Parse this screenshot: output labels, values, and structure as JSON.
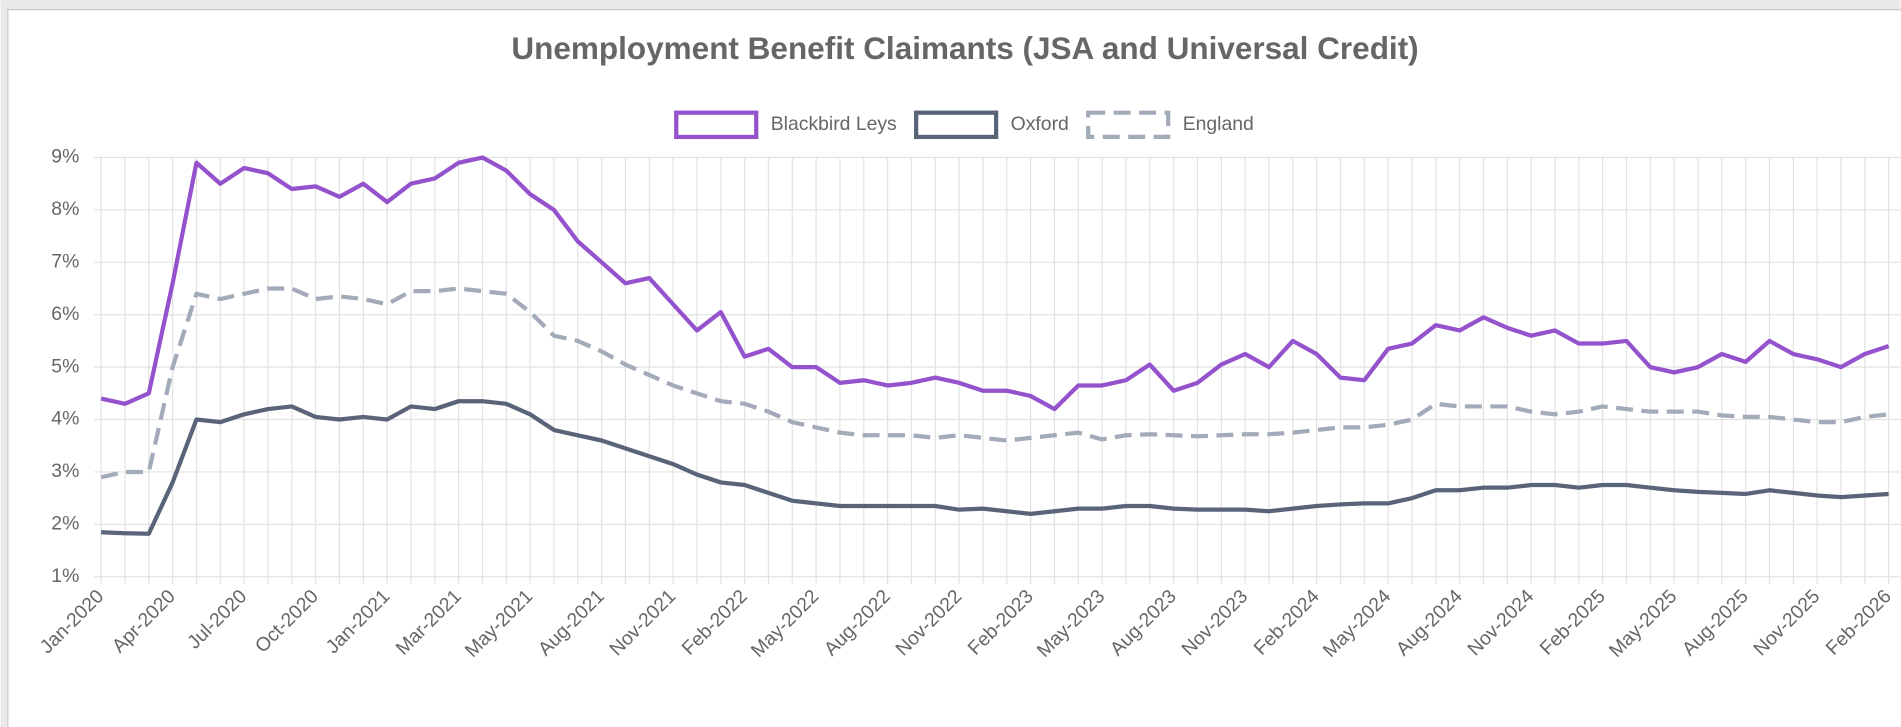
{
  "chart_data": {
    "type": "line",
    "title": "Unemployment Benefit Claimants (JSA and Universal Credit)",
    "categories": [
      "Jan-2020",
      null,
      null,
      "Apr-2020",
      null,
      null,
      "Jul-2020",
      null,
      null,
      "Oct-2020",
      null,
      null,
      "Jan-2021",
      null,
      null,
      "Mar-2021",
      null,
      null,
      "May-2021",
      null,
      null,
      "Aug-2021",
      null,
      null,
      "Nov-2021",
      null,
      null,
      "Feb-2022",
      null,
      null,
      "May-2022",
      null,
      null,
      "Aug-2022",
      null,
      null,
      "Nov-2022",
      null,
      null,
      "Feb-2023",
      null,
      null,
      "May-2023",
      null,
      null,
      "Aug-2023",
      null,
      null,
      "Nov-2023",
      null,
      null,
      "Feb-2024",
      null,
      null,
      "May-2024",
      null,
      null,
      "Aug-2024",
      null,
      null,
      "Nov-2024",
      null,
      null,
      "Feb-2025",
      null,
      null,
      "May-2025",
      null,
      null,
      "Aug-2025",
      null,
      null,
      "Nov-2025",
      null,
      null,
      "Feb-2026"
    ],
    "series": [
      {
        "name": "Blackbird Leys",
        "color": "#9452cc",
        "values": [
          4.4,
          4.3,
          4.5,
          6.6,
          8.9,
          8.5,
          8.8,
          8.7,
          8.4,
          8.45,
          8.25,
          8.5,
          8.15,
          8.5,
          8.6,
          8.9,
          9.0,
          8.75,
          8.3,
          8.0,
          7.4,
          7.0,
          6.6,
          6.7,
          6.2,
          5.7,
          6.05,
          5.2,
          5.35,
          5.0,
          5.0,
          4.7,
          4.75,
          4.65,
          4.7,
          4.8,
          4.7,
          4.55,
          4.55,
          4.45,
          4.2,
          4.65,
          4.65,
          4.75,
          5.05,
          4.55,
          4.7,
          5.05,
          5.25,
          5.0,
          5.5,
          5.25,
          4.8,
          4.75,
          5.35,
          5.45,
          5.8,
          5.7,
          5.95,
          5.75,
          5.6,
          5.7,
          5.45,
          5.45,
          5.5,
          5.0,
          4.9,
          5.0,
          5.25,
          5.1,
          5.5,
          5.25,
          5.15,
          5.0,
          5.25,
          5.4
        ]
      },
      {
        "name": "Oxford",
        "color": "#5a6478",
        "values": [
          1.85,
          1.83,
          1.82,
          2.8,
          4.0,
          3.95,
          4.1,
          4.2,
          4.25,
          4.05,
          4.0,
          4.05,
          4.0,
          4.25,
          4.2,
          4.35,
          4.35,
          4.3,
          4.1,
          3.8,
          3.7,
          3.6,
          3.45,
          3.3,
          3.15,
          2.95,
          2.8,
          2.75,
          2.6,
          2.45,
          2.4,
          2.35,
          2.35,
          2.35,
          2.35,
          2.35,
          2.28,
          2.3,
          2.25,
          2.2,
          2.25,
          2.3,
          2.3,
          2.35,
          2.35,
          2.3,
          2.28,
          2.28,
          2.28,
          2.25,
          2.3,
          2.35,
          2.38,
          2.4,
          2.4,
          2.5,
          2.65,
          2.65,
          2.7,
          2.7,
          2.75,
          2.75,
          2.7,
          2.75,
          2.75,
          2.7,
          2.65,
          2.62,
          2.6,
          2.58,
          2.65,
          2.6,
          2.55,
          2.52,
          2.55,
          2.58
        ]
      },
      {
        "name": "England",
        "color": "#a3abba",
        "dashed": true,
        "values": [
          2.9,
          3.0,
          3.0,
          5.0,
          6.4,
          6.3,
          6.4,
          6.5,
          6.5,
          6.3,
          6.35,
          6.3,
          6.2,
          6.45,
          6.45,
          6.5,
          6.45,
          6.4,
          6.05,
          5.6,
          5.5,
          5.3,
          5.05,
          4.85,
          4.65,
          4.5,
          4.35,
          4.3,
          4.15,
          3.95,
          3.85,
          3.75,
          3.7,
          3.7,
          3.7,
          3.65,
          3.7,
          3.65,
          3.6,
          3.65,
          3.7,
          3.75,
          3.62,
          3.7,
          3.72,
          3.7,
          3.68,
          3.7,
          3.72,
          3.72,
          3.75,
          3.8,
          3.85,
          3.85,
          3.9,
          4.0,
          4.3,
          4.25,
          4.25,
          4.25,
          4.15,
          4.1,
          4.15,
          4.25,
          4.2,
          4.15,
          4.15,
          4.15,
          4.08,
          4.05,
          4.05,
          4.0,
          3.95,
          3.95,
          4.05,
          4.1
        ]
      }
    ],
    "ylim": [
      1,
      9
    ],
    "yticks": [
      {
        "value": 1,
        "label": "1%"
      },
      {
        "value": 2,
        "label": "2%"
      },
      {
        "value": 3,
        "label": "3%"
      },
      {
        "value": 4,
        "label": "4%"
      },
      {
        "value": 5,
        "label": "5%"
      },
      {
        "value": 6,
        "label": "6%"
      },
      {
        "value": 7,
        "label": "7%"
      },
      {
        "value": 8,
        "label": "8%"
      },
      {
        "value": 9,
        "label": "9%"
      }
    ],
    "grid": true,
    "legend": "top"
  }
}
